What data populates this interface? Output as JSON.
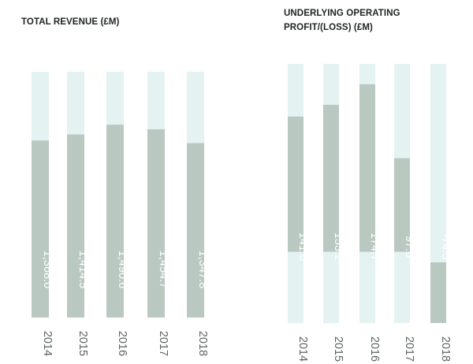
{
  "chart_data": [
    {
      "type": "bar",
      "title": "TOTAL REVENUE (£M)",
      "categories": [
        "2014",
        "2015",
        "2016",
        "2017",
        "2018"
      ],
      "values": [
        1368.0,
        1414.5,
        1490.6,
        1454.7,
        1347.8
      ],
      "labels": [
        "1,368.0",
        "1,414.5",
        "1,490.6",
        "1,454.7",
        "1,347.8"
      ],
      "ylim": [
        0,
        1900
      ],
      "colors": {
        "bar": "#b9c8c0",
        "track": "#e5f2f2"
      },
      "grid": false,
      "legend": "none"
    },
    {
      "type": "bar",
      "title": "UNDERLYING OPERATING PROFIT/(LOSS) (£M)",
      "categories": [
        "2014",
        "2015",
        "2016",
        "2017",
        "2018"
      ],
      "values": [
        141.0,
        153.2,
        174.7,
        97.6,
        -74.3
      ],
      "labels": [
        "141.0",
        "153.2",
        "174.7",
        "97.6",
        "-74.3"
      ],
      "ylim": [
        -74.3,
        196
      ],
      "colors": {
        "bar": "#b9c8c0",
        "track": "#e5f2f2"
      },
      "grid": false,
      "legend": "none"
    }
  ]
}
